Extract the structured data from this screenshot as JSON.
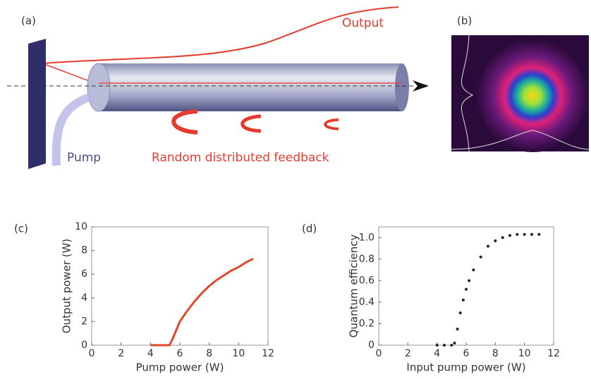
{
  "panel_a": {
    "label": "(a)",
    "output": "Output",
    "pump": "Pump",
    "feedback": "Random distributed feedback"
  },
  "panel_b": {
    "label": "(b)"
  },
  "chart_data": [
    {
      "type": "line",
      "panel_label": "(c)",
      "xlabel": "Pump power (W)",
      "ylabel": "Output power (W)",
      "x": [
        4,
        4.5,
        5,
        5.3,
        5.5,
        6,
        6.5,
        7,
        7.5,
        8,
        8.5,
        9,
        9.5,
        10,
        10.5,
        11
      ],
      "series": [
        {
          "color": "#e04a2a",
          "values": [
            0,
            0,
            0,
            0,
            0.5,
            2,
            2.9,
            3.7,
            4.4,
            5,
            5.5,
            5.9,
            6.3,
            6.6,
            7,
            7.3
          ]
        }
      ],
      "xlim": [
        0,
        12
      ],
      "ylim": [
        0,
        10
      ],
      "xticks": [
        0,
        2,
        4,
        6,
        8,
        10,
        12
      ],
      "yticks": [
        0,
        2,
        4,
        6,
        8,
        10
      ]
    },
    {
      "type": "scatter",
      "panel_label": "(d)",
      "xlabel": "Input pump power (W)",
      "ylabel": "Quantum efficiency",
      "x": [
        4,
        4.5,
        5,
        5.2,
        5.4,
        5.6,
        5.8,
        6,
        6.2,
        6.5,
        7,
        7.5,
        8,
        8.5,
        9,
        9.5,
        10,
        10.5,
        11
      ],
      "series": [
        {
          "color": "#222222",
          "values": [
            0,
            0,
            0,
            0.02,
            0.15,
            0.3,
            0.42,
            0.52,
            0.6,
            0.7,
            0.82,
            0.92,
            0.97,
            1.0,
            1.02,
            1.03,
            1.03,
            1.03,
            1.03
          ]
        }
      ],
      "xlim": [
        0,
        12
      ],
      "ylim": [
        0,
        1.1
      ],
      "xticks": [
        0,
        2,
        4,
        6,
        8,
        10,
        12
      ],
      "yticks": [
        0,
        0.2,
        0.4,
        0.6,
        0.8,
        {
          "value": 1,
          "label": "1.0"
        }
      ]
    }
  ]
}
